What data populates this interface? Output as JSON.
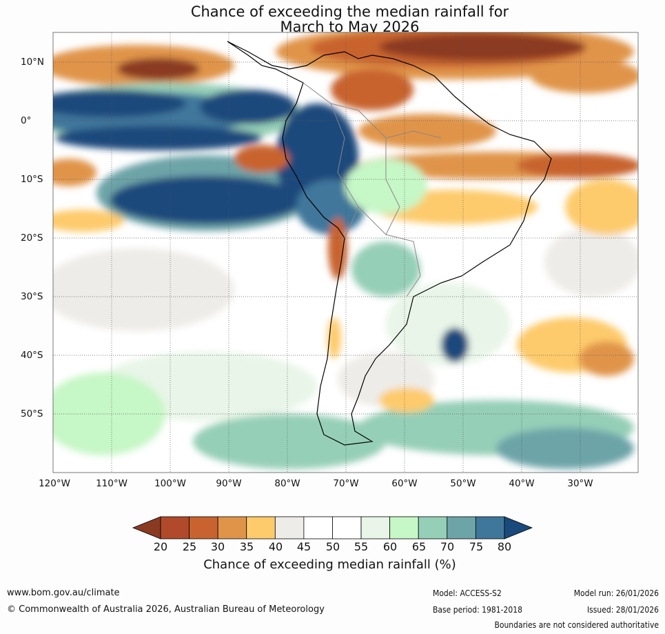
{
  "title": {
    "line1": "Chance of exceeding the median rainfall for",
    "line2": "March to May 2026"
  },
  "map": {
    "region": "South America",
    "lat_labels": [
      "10°N",
      "0°",
      "10°S",
      "20°S",
      "30°S",
      "40°S",
      "50°S"
    ],
    "lon_labels": [
      "120°W",
      "110°W",
      "100°W",
      "90°W",
      "80°W",
      "70°W",
      "60°W",
      "50°W",
      "40°W",
      "30°W"
    ]
  },
  "colorbar": {
    "ticks": [
      "20",
      "25",
      "30",
      "35",
      "40",
      "45",
      "50",
      "55",
      "60",
      "65",
      "70",
      "75",
      "80"
    ],
    "colors": [
      "#8b3a22",
      "#b04a2b",
      "#c8632f",
      "#e0944a",
      "#fdcb6c",
      "#eeece8",
      "#ffffff",
      "#ffffff",
      "#e8f5e8",
      "#c6f7c6",
      "#95cfb7",
      "#6da4a8",
      "#3f779b",
      "#1a4a7c"
    ],
    "label": "Chance of exceeding median rainfall (%)"
  },
  "footer": {
    "url": "www.bom.gov.au/climate",
    "copyright": "© Commonwealth of Australia 2026, Australian Bureau of Meteorology",
    "model": "Model: ACCESS-S2",
    "base_period": "Base period: 1981-2018",
    "model_run": "Model run: 26/01/2026",
    "issued": "Issued: 28/01/2026",
    "disclaimer": "Boundaries are not considered authoritative"
  }
}
